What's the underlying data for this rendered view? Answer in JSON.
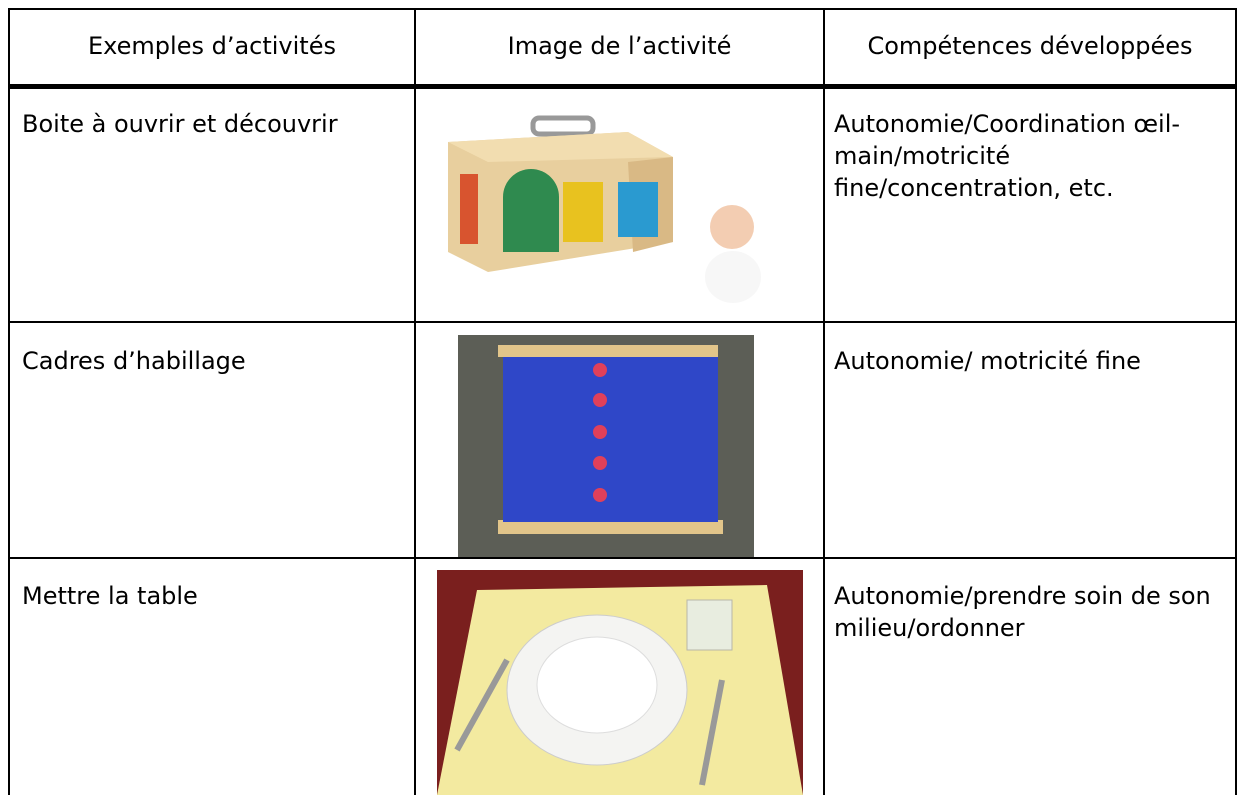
{
  "table": {
    "headers": [
      "Exemples d’activités",
      "Image de l’activité",
      "Compétences développées"
    ],
    "rows": [
      [
        "Boite à ouvrir et découvrir",
        "Autonomie/Coordination œil-main/motricité fine/concentration, etc."
      ],
      [
        "Cadres d’habillage",
        "Autonomie/ motricité fine"
      ],
      [
        "Mettre la table",
        "Autonomie/prendre soin de son milieu/ordonner"
      ]
    ]
  }
}
